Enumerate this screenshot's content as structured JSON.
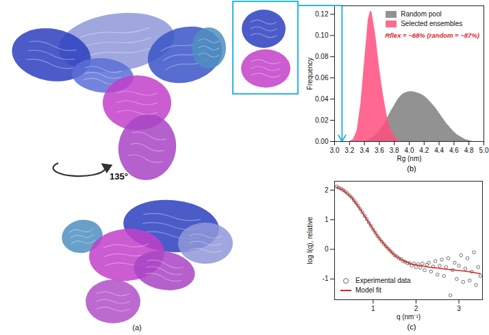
{
  "panel_a": {
    "label": "(a)",
    "rotation": "135°"
  },
  "chart_data": [
    {
      "type": "area",
      "label": "(b)",
      "xlabel": "Rg (nm)",
      "ylabel": "Frequency",
      "annotation": "Rflex = ~68% (random = ~87%)",
      "legend": "top-right",
      "xlim": [
        3.0,
        5.0
      ],
      "xticks": [
        {
          "value": 3,
          "label": "3.0"
        },
        {
          "value": 3.2,
          "label": "3.2"
        },
        {
          "value": 3.4,
          "label": "3.4"
        },
        {
          "value": 3.6,
          "label": "3.6"
        },
        {
          "value": 3.8,
          "label": "3.8"
        },
        {
          "value": 4,
          "label": "4.0"
        },
        {
          "value": 4.2,
          "label": "4.2"
        },
        {
          "value": 4.4,
          "label": "4.4"
        },
        {
          "value": 4.6,
          "label": "4.6"
        },
        {
          "value": 4.8,
          "label": "4.8"
        },
        {
          "value": 5,
          "label": "5.0"
        }
      ],
      "ylim": [
        0,
        0.128
      ],
      "yticks": [
        {
          "value": 0,
          "label": "0.00"
        },
        {
          "value": 0.02,
          "label": "0.02"
        },
        {
          "value": 0.04,
          "label": "0.04"
        },
        {
          "value": 0.06,
          "label": "0.06"
        },
        {
          "value": 0.08,
          "label": "0.08"
        },
        {
          "value": 0.1,
          "label": "0.10"
        },
        {
          "value": 0.12,
          "label": "0.12"
        }
      ],
      "arrow_x": 3.1,
      "series": [
        {
          "name": "Random pool",
          "color": "#7f7f7f",
          "x": [
            3.4,
            3.5,
            3.55,
            3.6,
            3.65,
            3.7,
            3.75,
            3.8,
            3.85,
            3.9,
            3.95,
            4.0,
            4.05,
            4.1,
            4.15,
            4.2,
            4.25,
            4.3,
            4.35,
            4.4,
            4.45,
            4.5,
            4.55,
            4.6,
            4.65,
            4.7,
            4.75,
            4.8,
            4.85,
            4.9
          ],
          "values": [
            0,
            0.003,
            0.006,
            0.01,
            0.015,
            0.021,
            0.028,
            0.034,
            0.04,
            0.044,
            0.046,
            0.047,
            0.047,
            0.046,
            0.045,
            0.043,
            0.04,
            0.036,
            0.032,
            0.027,
            0.022,
            0.017,
            0.013,
            0.009,
            0.006,
            0.004,
            0.002,
            0.001,
            0,
            0
          ]
        },
        {
          "name": "Selected ensembles",
          "color": "#ff4f7e",
          "x": [
            3.2,
            3.25,
            3.3,
            3.35,
            3.4,
            3.45,
            3.48,
            3.5,
            3.55,
            3.6,
            3.65,
            3.7,
            3.75,
            3.8,
            3.85,
            3.9
          ],
          "values": [
            0,
            0.002,
            0.01,
            0.035,
            0.075,
            0.115,
            0.123,
            0.122,
            0.1,
            0.07,
            0.045,
            0.025,
            0.012,
            0.005,
            0.001,
            0
          ]
        }
      ]
    },
    {
      "type": "scatter",
      "label": "(c)",
      "xlabel": "q (nm⁻¹)",
      "ylabel": "log I(q), relative",
      "legend": "bottom-left",
      "xlim": [
        0.1,
        3.55
      ],
      "xticks": [
        1,
        2,
        3
      ],
      "ylim": [
        -1.7,
        2.3
      ],
      "yticks": [
        -1,
        0,
        1,
        2
      ],
      "series": [
        {
          "name": "Experimental data",
          "type": "scatter",
          "marker": "open-circle",
          "color": "#606060",
          "x": [
            0.15,
            0.2,
            0.25,
            0.3,
            0.35,
            0.4,
            0.45,
            0.5,
            0.55,
            0.6,
            0.65,
            0.7,
            0.75,
            0.8,
            0.85,
            0.9,
            0.95,
            1.0,
            1.05,
            1.1,
            1.15,
            1.2,
            1.25,
            1.3,
            1.35,
            1.4,
            1.45,
            1.5,
            1.55,
            1.6,
            1.65,
            1.7,
            1.75,
            1.8,
            1.85,
            1.9,
            1.95,
            2.0,
            2.05,
            2.1,
            2.15,
            2.2,
            2.25,
            2.3,
            2.35,
            2.4,
            2.45,
            2.5,
            2.55,
            2.6,
            2.65,
            2.7,
            2.75,
            2.8,
            2.85,
            2.9,
            2.95,
            3.0,
            3.05,
            3.1,
            3.15,
            3.2,
            3.25,
            3.3,
            3.35,
            3.4,
            3.45,
            3.5
          ],
          "values": [
            2.12,
            2.08,
            2.05,
            2.0,
            1.95,
            1.89,
            1.82,
            1.75,
            1.66,
            1.57,
            1.47,
            1.36,
            1.25,
            1.13,
            1.02,
            0.9,
            0.79,
            0.67,
            0.56,
            0.45,
            0.36,
            0.26,
            0.18,
            0.1,
            0.02,
            -0.05,
            -0.12,
            -0.2,
            -0.24,
            -0.3,
            -0.33,
            -0.4,
            -0.42,
            -0.47,
            -0.46,
            -0.55,
            -0.48,
            -0.6,
            -0.5,
            -0.62,
            -0.48,
            -0.7,
            -0.52,
            -0.45,
            -0.75,
            -0.58,
            -0.4,
            -0.85,
            -0.55,
            -0.35,
            -0.9,
            -0.6,
            -0.3,
            -1.55,
            -0.7,
            -0.45,
            -1.0,
            -0.55,
            -0.2,
            -1.1,
            -0.65,
            -0.3,
            -1.05,
            -0.75,
            -0.1,
            -1.2,
            -0.6,
            -0.9
          ]
        },
        {
          "name": "Model fit",
          "type": "line",
          "color": "#e02020",
          "x": [
            0.15,
            0.3,
            0.5,
            0.7,
            0.9,
            1.1,
            1.3,
            1.5,
            1.7,
            1.9,
            2.1,
            2.3,
            2.5,
            2.7,
            2.9,
            3.1,
            3.3,
            3.5
          ],
          "values": [
            2.1,
            2.0,
            1.75,
            1.35,
            0.9,
            0.45,
            0.1,
            -0.2,
            -0.38,
            -0.5,
            -0.55,
            -0.6,
            -0.63,
            -0.67,
            -0.7,
            -0.73,
            -0.77,
            -0.82
          ]
        }
      ]
    }
  ]
}
